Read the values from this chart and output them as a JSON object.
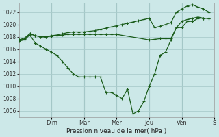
{
  "xlabel": "Pression niveau de la mer( hPa )",
  "background_color": "#cce8e8",
  "grid_color": "#aacccc",
  "line_color": "#1a5c1a",
  "xlim": [
    0,
    36
  ],
  "ylim": [
    1005,
    1023.5
  ],
  "yticks": [
    1006,
    1008,
    1010,
    1012,
    1014,
    1016,
    1018,
    1020,
    1022
  ],
  "day_labels": [
    "Dim",
    "Mar",
    "Mer",
    "Jeu",
    "Ven",
    "S"
  ],
  "day_positions": [
    6,
    12,
    18,
    24,
    30,
    36
  ],
  "series_top_x": [
    0,
    1,
    2,
    3,
    4,
    5,
    6,
    7,
    8,
    9,
    10,
    11,
    12,
    13,
    14,
    15,
    16,
    17,
    18,
    19,
    20,
    21,
    22,
    23,
    24,
    25,
    26,
    27,
    28,
    29,
    30,
    31,
    32,
    33,
    34,
    35
  ],
  "series_top_y": [
    1017.5,
    1017.8,
    1018.5,
    1018.2,
    1018.0,
    1018.0,
    1018.2,
    1018.3,
    1018.5,
    1018.7,
    1018.8,
    1018.8,
    1018.8,
    1018.9,
    1019.0,
    1019.2,
    1019.4,
    1019.6,
    1019.8,
    1020.0,
    1020.2,
    1020.4,
    1020.6,
    1020.8,
    1021.0,
    1019.5,
    1019.7,
    1020.0,
    1020.3,
    1022.0,
    1022.5,
    1023.0,
    1023.2,
    1022.8,
    1022.5,
    1022.0
  ],
  "series_mid_x": [
    0,
    1,
    2,
    3,
    4,
    5,
    6,
    7,
    8,
    9,
    10,
    11,
    12,
    13,
    14,
    15,
    16,
    17,
    18,
    24,
    25,
    26,
    27,
    28,
    29,
    30,
    31,
    32,
    33,
    34,
    35
  ],
  "series_mid_y": [
    1017.5,
    1017.6,
    1018.5,
    1018.2,
    1018.0,
    1018.0,
    1018.1,
    1018.2,
    1018.3,
    1018.4,
    1018.4,
    1018.4,
    1018.4,
    1018.4,
    1018.4,
    1018.4,
    1018.4,
    1018.4,
    1018.4,
    1017.5,
    1017.6,
    1017.7,
    1017.7,
    1017.7,
    1019.5,
    1020.5,
    1020.8,
    1021.0,
    1021.2,
    1021.0,
    1021.0
  ],
  "series_low_x": [
    0,
    1,
    2,
    3,
    4,
    5,
    6,
    7,
    8,
    9,
    10,
    11,
    12,
    13,
    14,
    15,
    16,
    17,
    18,
    19,
    20,
    21,
    22,
    23,
    24,
    25,
    26,
    27,
    28,
    29,
    30,
    31,
    32,
    33,
    34,
    35
  ],
  "series_low_y": [
    1017.3,
    1017.5,
    1018.3,
    1017.0,
    1016.5,
    1016.0,
    1015.5,
    1015.0,
    1014.0,
    1013.0,
    1012.0,
    1011.5,
    1011.5,
    1011.5,
    1011.5,
    1011.5,
    1009.0,
    1009.0,
    1008.5,
    1008.0,
    1009.5,
    1005.5,
    1006.0,
    1007.5,
    1010.0,
    1012.0,
    1015.0,
    1015.5,
    1017.5,
    1019.5,
    1019.5,
    1020.5,
    1020.5,
    1021.0,
    1021.0,
    1021.0
  ]
}
